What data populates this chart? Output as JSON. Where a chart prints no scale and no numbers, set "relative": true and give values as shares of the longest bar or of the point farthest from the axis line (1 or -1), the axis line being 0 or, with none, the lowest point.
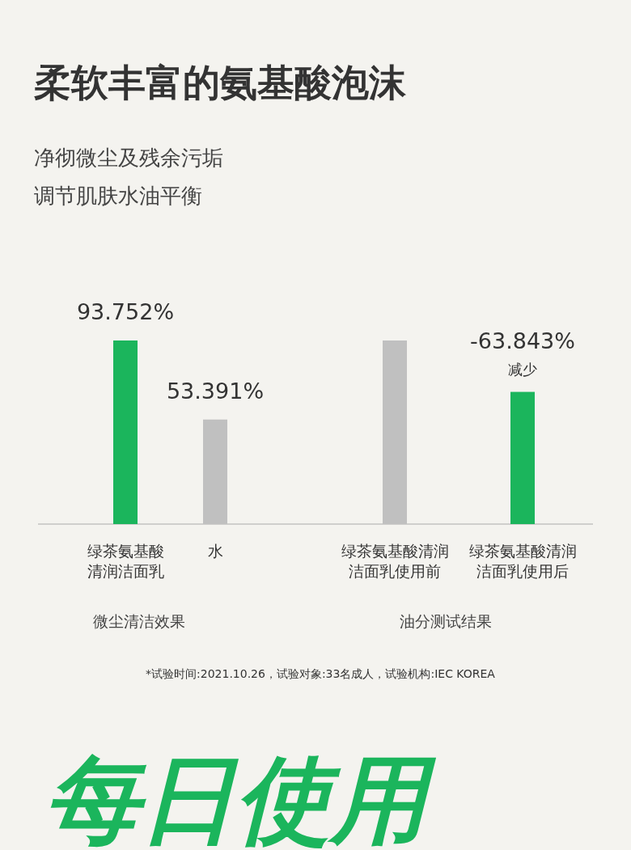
{
  "chart_data": [
    {
      "type": "bar",
      "title": "柔软丰富的氨基酸泡沫",
      "subtitle": "净彻微尘及残余污垢调节肌肤水油平衡",
      "xlabel": "微尘清洁效果",
      "categories": [
        "绿茶氨基酸清润洁面乳",
        "水"
      ],
      "values": [
        93.752,
        53.391
      ],
      "colors": [
        "#1bb55c",
        "#c0c0c0"
      ],
      "data_labels": true,
      "value_labels": [
        "93.752%",
        "53.391%"
      ]
    },
    {
      "type": "bar",
      "relative": true,
      "xlabel": "油分测试结果",
      "categories": [
        "绿茶氨基酸清润洁面乳使用前",
        "绿茶氨基酸清润洁面乳使用后"
      ],
      "values": [
        1,
        0.72
      ],
      "colors": [
        "#c0c0c0",
        "#1bb55c"
      ],
      "annotations": [
        {
          "text": "-63.843%",
          "x": "绿茶氨基酸清润洁面乳使用后",
          "y": 0.72
        },
        {
          "text": "减少",
          "x": "绿茶氨基酸清润洁面乳使用后",
          "y": 0.72
        },
        "*试验时间:2021.10.26，试验对象:33名成人，试验机构:IEC KOREA",
        "每日使用"
      ]
    }
  ]
}
